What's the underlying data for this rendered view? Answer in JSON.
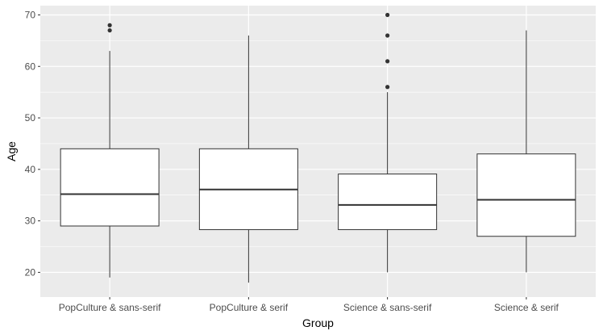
{
  "chart_data": {
    "type": "boxplot",
    "title": "",
    "xlabel": "Group",
    "ylabel": "Age",
    "ylim": [
      15.2,
      71.8
    ],
    "yticks": [
      20,
      30,
      40,
      50,
      60,
      70
    ],
    "categories": [
      "PopCulture & sans-serif",
      "PopCulture & serif",
      "Science & sans-serif",
      "Science & serif"
    ],
    "boxes": [
      {
        "category": "PopCulture & sans-serif",
        "whisker_low": 19,
        "q1": 29,
        "median": 35.2,
        "q3": 44,
        "whisker_high": 63,
        "outliers": [
          67,
          68
        ]
      },
      {
        "category": "PopCulture & serif",
        "whisker_low": 18,
        "q1": 28.3,
        "median": 36.1,
        "q3": 44,
        "whisker_high": 66,
        "outliers": []
      },
      {
        "category": "Science & sans-serif",
        "whisker_low": 20,
        "q1": 28.3,
        "median": 33.1,
        "q3": 39.1,
        "whisker_high": 55,
        "outliers": [
          56,
          61,
          66,
          70
        ]
      },
      {
        "category": "Science & serif",
        "whisker_low": 20,
        "q1": 27,
        "median": 34.1,
        "q3": 43,
        "whisker_high": 67,
        "outliers": []
      }
    ],
    "grid": true,
    "legend": "none",
    "colors": {
      "panel_background": "#ebebeb",
      "grid": "#ffffff",
      "box_fill": "#ffffff",
      "box_stroke": "#333333",
      "outlier": "#333333",
      "tick_label": "#4d4d4d",
      "axis_title": "#000000"
    }
  }
}
